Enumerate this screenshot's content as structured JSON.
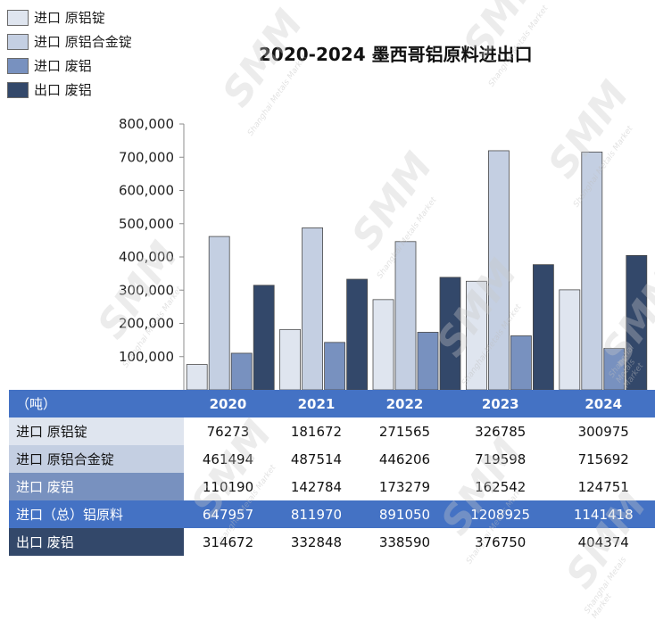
{
  "chart_data": {
    "type": "bar",
    "title": "2020-2024 墨西哥铝原料进出口",
    "categories": [
      "2020",
      "2021",
      "2022",
      "2023",
      "2024"
    ],
    "series": [
      {
        "name": "进口 原铝锭",
        "color": "#dfe5ef",
        "values": [
          76273,
          181672,
          271565,
          326785,
          300975
        ]
      },
      {
        "name": "进口 原铝合金锭",
        "color": "#c4cfe2",
        "values": [
          461494,
          487514,
          446206,
          719598,
          715692
        ]
      },
      {
        "name": "进口 废铝",
        "color": "#7891bf",
        "values": [
          110190,
          142784,
          173279,
          162542,
          124751
        ]
      },
      {
        "name": "出口 废铝",
        "color": "#33486a",
        "values": [
          314672,
          332848,
          338590,
          376750,
          404374
        ]
      }
    ],
    "ylim": [
      0,
      800000
    ],
    "yticks": [
      100000,
      200000,
      300000,
      400000,
      500000,
      600000,
      700000,
      800000
    ],
    "ytick_labels": [
      "100,000",
      "200,000",
      "300,000",
      "400,000",
      "500,000",
      "600,000",
      "700,000",
      "800,000"
    ],
    "legend_position": "top-left",
    "grid": false
  },
  "table": {
    "unit_label": "（吨）",
    "rows": [
      {
        "label": "进口 原铝锭",
        "bg": "#dfe5ef",
        "values": [
          "76273",
          "181672",
          "271565",
          "326785",
          "300975"
        ]
      },
      {
        "label": "进口 原铝合金锭",
        "bg": "#c4cfe2",
        "values": [
          "461494",
          "487514",
          "446206",
          "719598",
          "715692"
        ]
      },
      {
        "label": "进口 废铝",
        "bg": "#7891bf",
        "values": [
          "110190",
          "142784",
          "173279",
          "162542",
          "124751"
        ]
      },
      {
        "label": "进口（总）铝原料",
        "bg": "#4472c4",
        "values": [
          "647957",
          "811970",
          "891050",
          "1208925",
          "1141418"
        ]
      },
      {
        "label": "出口 废铝",
        "bg": "#33486a",
        "values": [
          "314672",
          "332848",
          "338590",
          "376750",
          "404374"
        ]
      }
    ]
  },
  "watermark": {
    "logo": "SMM",
    "tagline": "Shanghai Metals Market"
  }
}
